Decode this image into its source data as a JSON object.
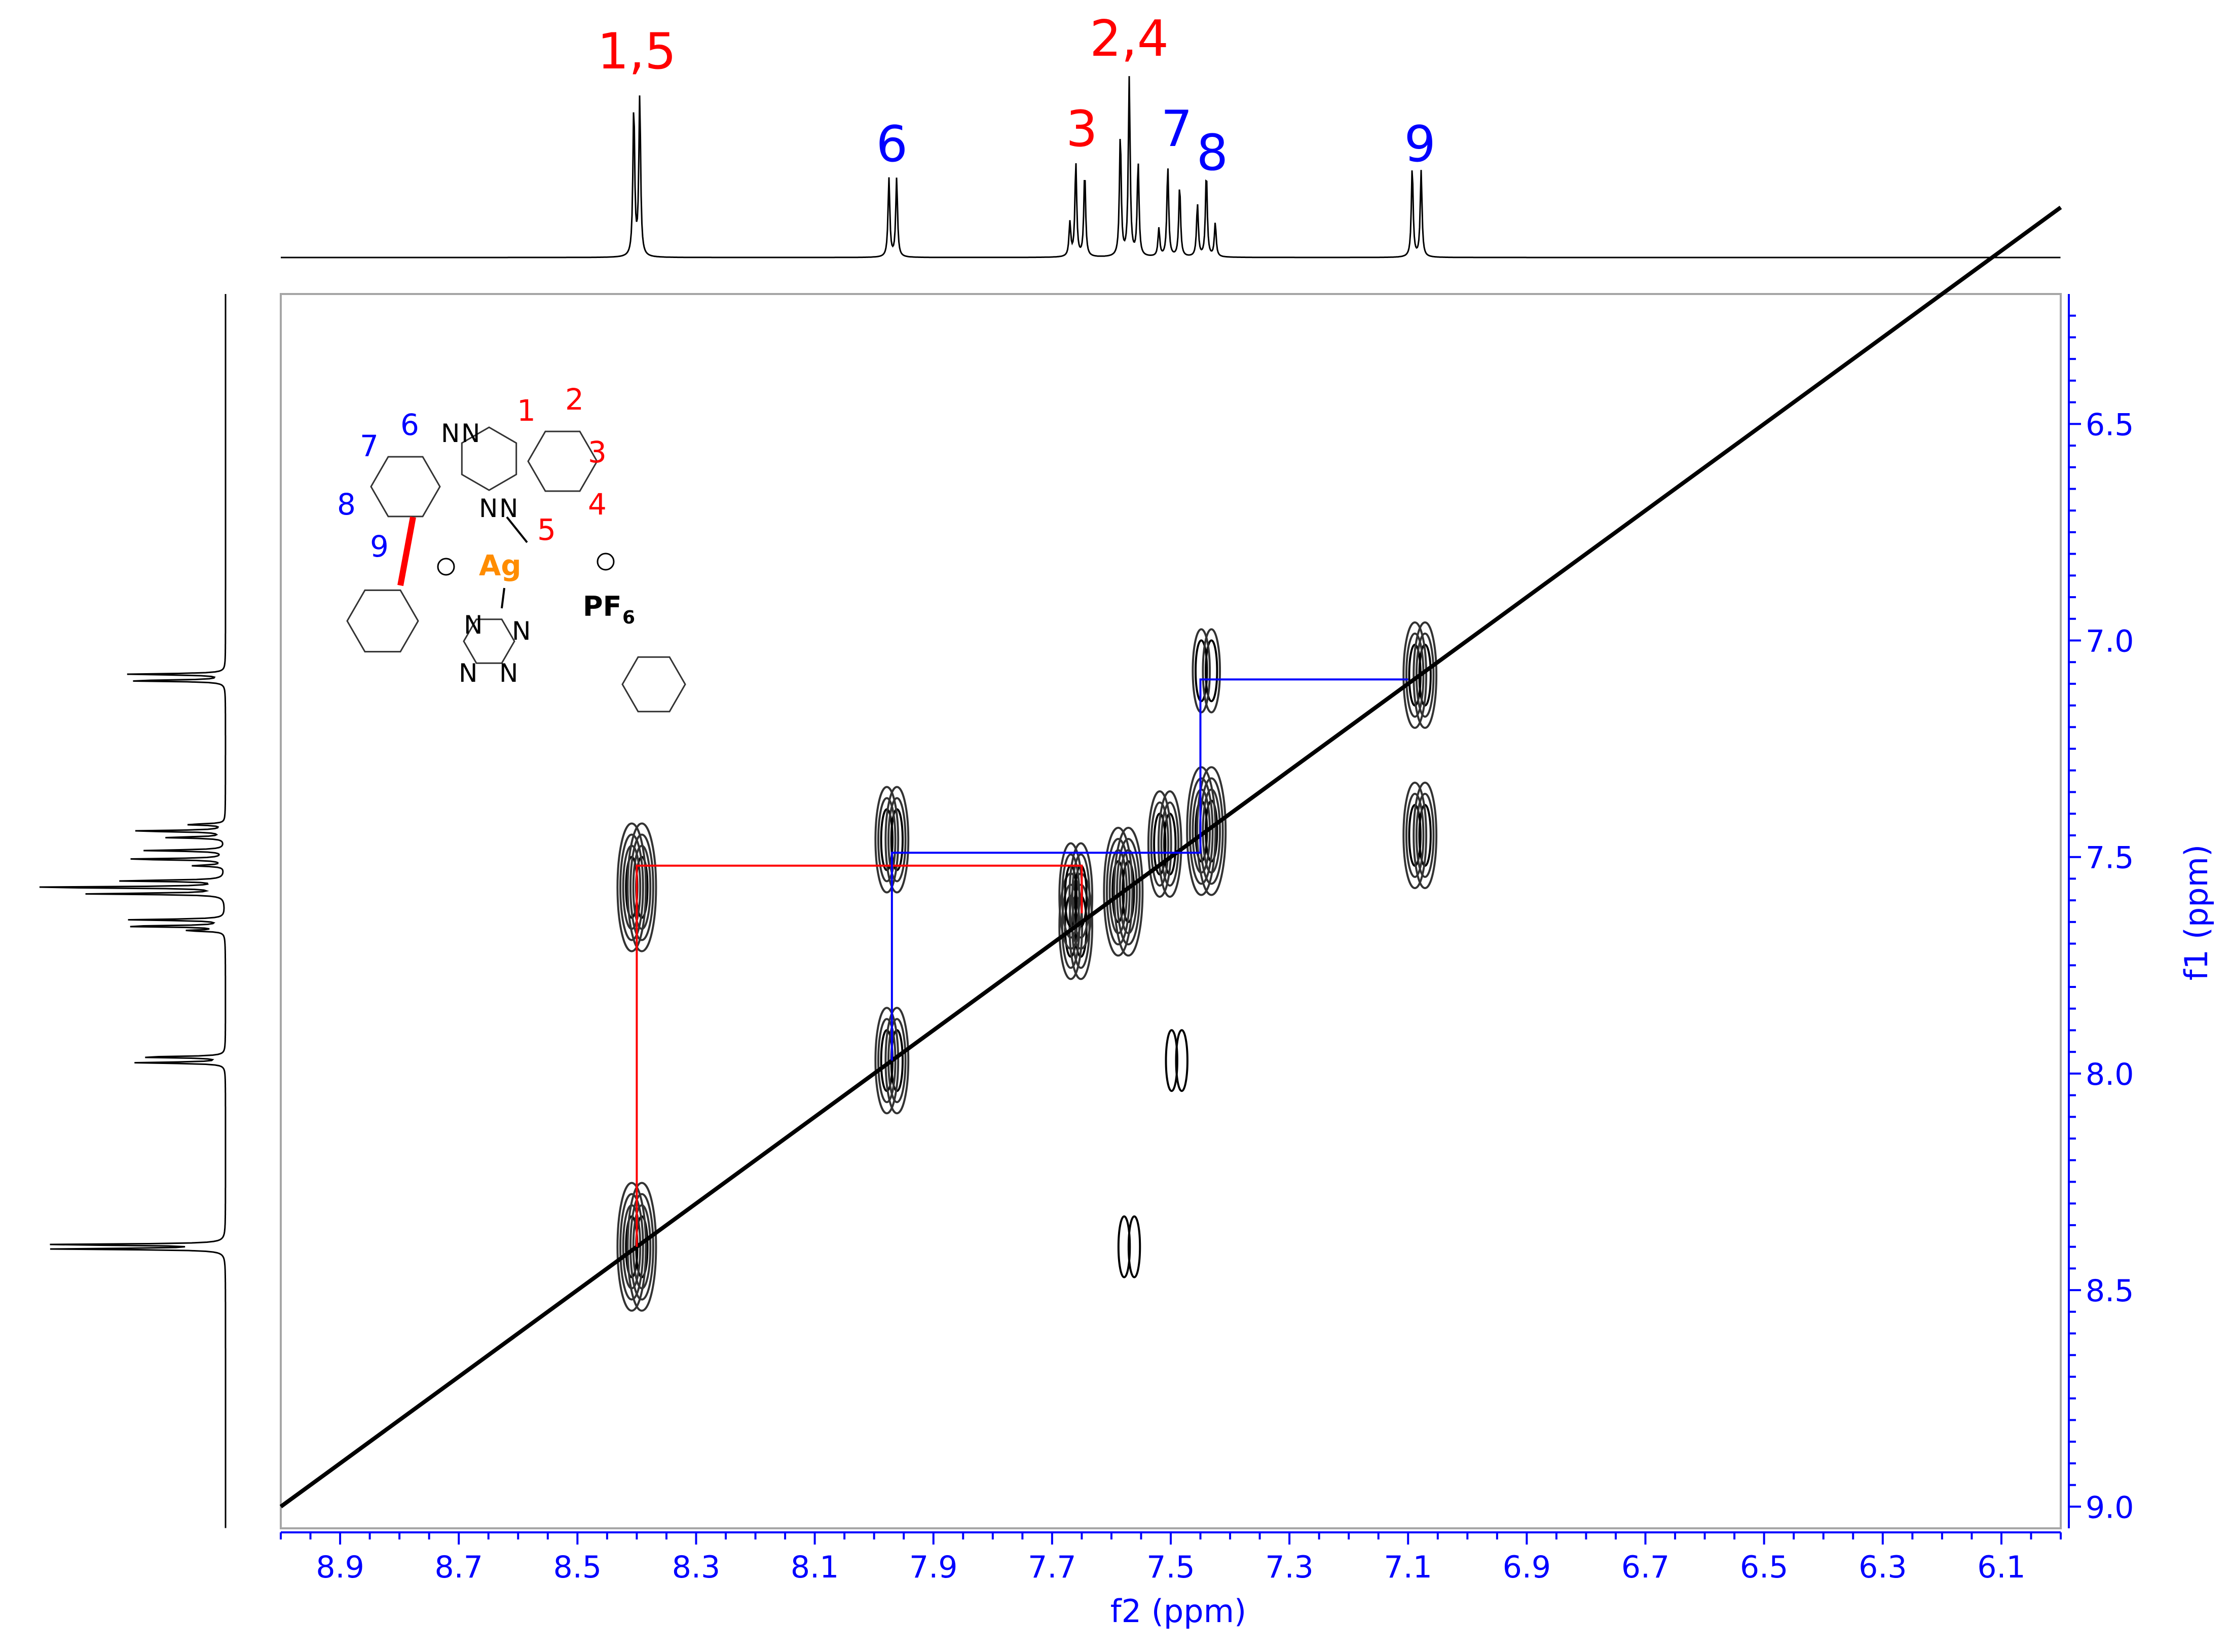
{
  "chart_data": {
    "type": "contour",
    "xlabel": "f2 (ppm)",
    "ylabel": "f1 (ppm)",
    "xlim": [
      9.0,
      6.0
    ],
    "ylim": [
      6.2,
      9.05
    ],
    "x_ticks": [
      "8.9",
      "8.7",
      "8.5",
      "8.3",
      "8.1",
      "7.9",
      "7.7",
      "7.5",
      "7.3",
      "7.1",
      "6.9",
      "6.7",
      "6.5",
      "6.3",
      "6.1"
    ],
    "x_tick_values": [
      8.9,
      8.7,
      8.5,
      8.3,
      8.1,
      7.9,
      7.7,
      7.5,
      7.3,
      7.1,
      6.9,
      6.7,
      6.5,
      6.3,
      6.1
    ],
    "y_ticks": [
      "6.5",
      "7.0",
      "7.5",
      "8.0",
      "8.5",
      "9.0"
    ],
    "y_tick_values": [
      6.5,
      7.0,
      7.5,
      8.0,
      8.5,
      9.0
    ],
    "peak_labels": [
      {
        "text": "1,5",
        "ppm": 8.4,
        "color": "#ff0000"
      },
      {
        "text": "6",
        "ppm": 7.97,
        "color": "#0000ff"
      },
      {
        "text": "3",
        "ppm": 7.65,
        "color": "#ff0000"
      },
      {
        "text": "2,4",
        "ppm": 7.57,
        "color": "#ff0000"
      },
      {
        "text": "7",
        "ppm": 7.49,
        "color": "#0000ff"
      },
      {
        "text": "8",
        "ppm": 7.43,
        "color": "#0000ff"
      },
      {
        "text": "9",
        "ppm": 7.08,
        "color": "#0000ff"
      }
    ],
    "spectrum_1d": [
      {
        "ppm": 8.405,
        "h": 0.8
      },
      {
        "ppm": 8.395,
        "h": 0.85
      },
      {
        "ppm": 7.975,
        "h": 0.42
      },
      {
        "ppm": 7.962,
        "h": 0.42
      },
      {
        "ppm": 7.67,
        "h": 0.18
      },
      {
        "ppm": 7.66,
        "h": 0.5
      },
      {
        "ppm": 7.645,
        "h": 0.45
      },
      {
        "ppm": 7.585,
        "h": 0.65
      },
      {
        "ppm": 7.57,
        "h": 0.95
      },
      {
        "ppm": 7.555,
        "h": 0.5
      },
      {
        "ppm": 7.52,
        "h": 0.15
      },
      {
        "ppm": 7.505,
        "h": 0.48
      },
      {
        "ppm": 7.485,
        "h": 0.38
      },
      {
        "ppm": 7.455,
        "h": 0.28
      },
      {
        "ppm": 7.44,
        "h": 0.45
      },
      {
        "ppm": 7.425,
        "h": 0.18
      },
      {
        "ppm": 7.093,
        "h": 0.48
      },
      {
        "ppm": 7.078,
        "h": 0.46
      }
    ],
    "cross_peaks": [
      {
        "f2": 8.4,
        "f1": 8.4,
        "strength": 4
      },
      {
        "f2": 8.4,
        "f1": 7.57,
        "strength": 4
      },
      {
        "f2": 7.97,
        "f1": 7.97,
        "strength": 3
      },
      {
        "f2": 7.97,
        "f1": 7.46,
        "strength": 3
      },
      {
        "f2": 7.66,
        "f1": 7.66,
        "strength": 3
      },
      {
        "f2": 7.66,
        "f1": 7.59,
        "strength": 3
      },
      {
        "f2": 7.58,
        "f1": 7.58,
        "strength": 4
      },
      {
        "f2": 7.51,
        "f1": 7.47,
        "strength": 3
      },
      {
        "f2": 7.44,
        "f1": 7.44,
        "strength": 4
      },
      {
        "f2": 7.44,
        "f1": 7.07,
        "strength": 2
      },
      {
        "f2": 7.08,
        "f1": 7.08,
        "strength": 3
      },
      {
        "f2": 7.08,
        "f1": 7.45,
        "strength": 3
      },
      {
        "f2": 7.49,
        "f1": 7.97,
        "strength": 1
      },
      {
        "f2": 7.57,
        "f1": 8.4,
        "strength": 1
      }
    ],
    "correlation_paths": [
      {
        "color": "#ff0000",
        "points": [
          [
            8.4,
            8.4
          ],
          [
            8.4,
            7.52
          ],
          [
            7.65,
            7.52
          ],
          [
            7.65,
            7.63
          ]
        ]
      },
      {
        "color": "#0000ff",
        "points": [
          [
            7.97,
            7.97
          ],
          [
            7.97,
            7.49
          ],
          [
            7.45,
            7.49
          ],
          [
            7.45,
            7.09
          ],
          [
            7.1,
            7.09
          ]
        ]
      }
    ]
  },
  "structure": {
    "proton_labels": [
      {
        "text": "1",
        "color": "#ff0000"
      },
      {
        "text": "2",
        "color": "#ff0000"
      },
      {
        "text": "3",
        "color": "#ff0000"
      },
      {
        "text": "4",
        "color": "#ff0000"
      },
      {
        "text": "5",
        "color": "#ff0000"
      },
      {
        "text": "6",
        "color": "#0000ff"
      },
      {
        "text": "7",
        "color": "#0000ff"
      },
      {
        "text": "8",
        "color": "#0000ff"
      },
      {
        "text": "9",
        "color": "#0000ff"
      }
    ],
    "atoms": {
      "n": "N",
      "metal": "Ag",
      "metal_color": "#ff8c00",
      "anion": "PF",
      "anion_sub": "6"
    }
  },
  "colors": {
    "axis": "#0000ff",
    "frame": "#a6a6a6",
    "contour": "#1a1a1a",
    "diagonal": "#000000"
  }
}
